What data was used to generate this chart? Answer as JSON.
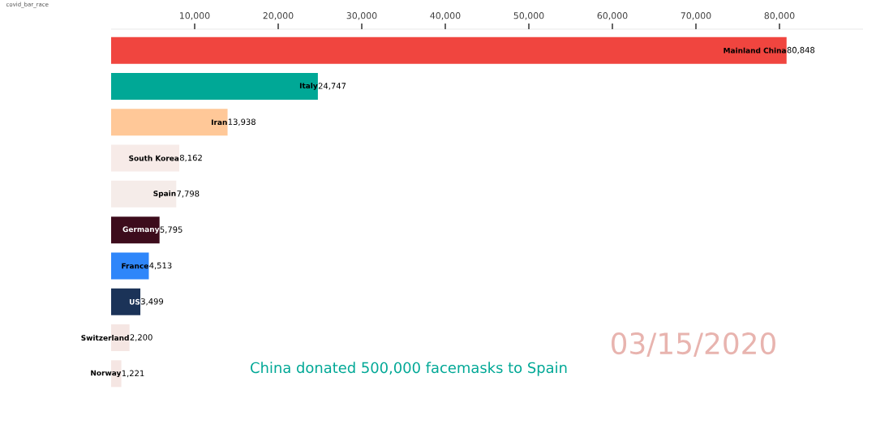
{
  "chart_data": {
    "type": "bar",
    "orientation": "horizontal",
    "categories": [
      "Mainland China",
      "Italy",
      "Iran",
      "South Korea",
      "Spain",
      "Germany",
      "France",
      "US",
      "Switzerland",
      "Norway"
    ],
    "values": [
      80848,
      24747,
      13938,
      8162,
      7798,
      5795,
      4513,
      3499,
      2200,
      1221
    ],
    "value_labels": [
      "80,848",
      "24,747",
      "13,938",
      "8,162",
      "7,798",
      "5,795",
      "4,513",
      "3,499",
      "2,200",
      "1,221"
    ],
    "colors": [
      "#f0453f",
      "#00a896",
      "#ffc898",
      "#f7ebe8",
      "#f5ece9",
      "#3d0c1c",
      "#2e86fa",
      "#1b3358",
      "#f5e6e3",
      "#f5e6e3"
    ],
    "xlim": [
      0,
      90000
    ],
    "xticks": [
      {
        "value": 10000,
        "label": "10,000"
      },
      {
        "value": 20000,
        "label": "20,000"
      },
      {
        "value": 30000,
        "label": "30,000"
      },
      {
        "value": 40000,
        "label": "40,000"
      },
      {
        "value": 50000,
        "label": "50,000"
      },
      {
        "value": 60000,
        "label": "60,000"
      },
      {
        "value": 70000,
        "label": "70,000"
      },
      {
        "value": 80000,
        "label": "80,000"
      }
    ],
    "annotations": [
      "covid_bar_race",
      "03/15/2020",
      "China donated 500,000 facemasks to Spain"
    ],
    "grid": false
  }
}
